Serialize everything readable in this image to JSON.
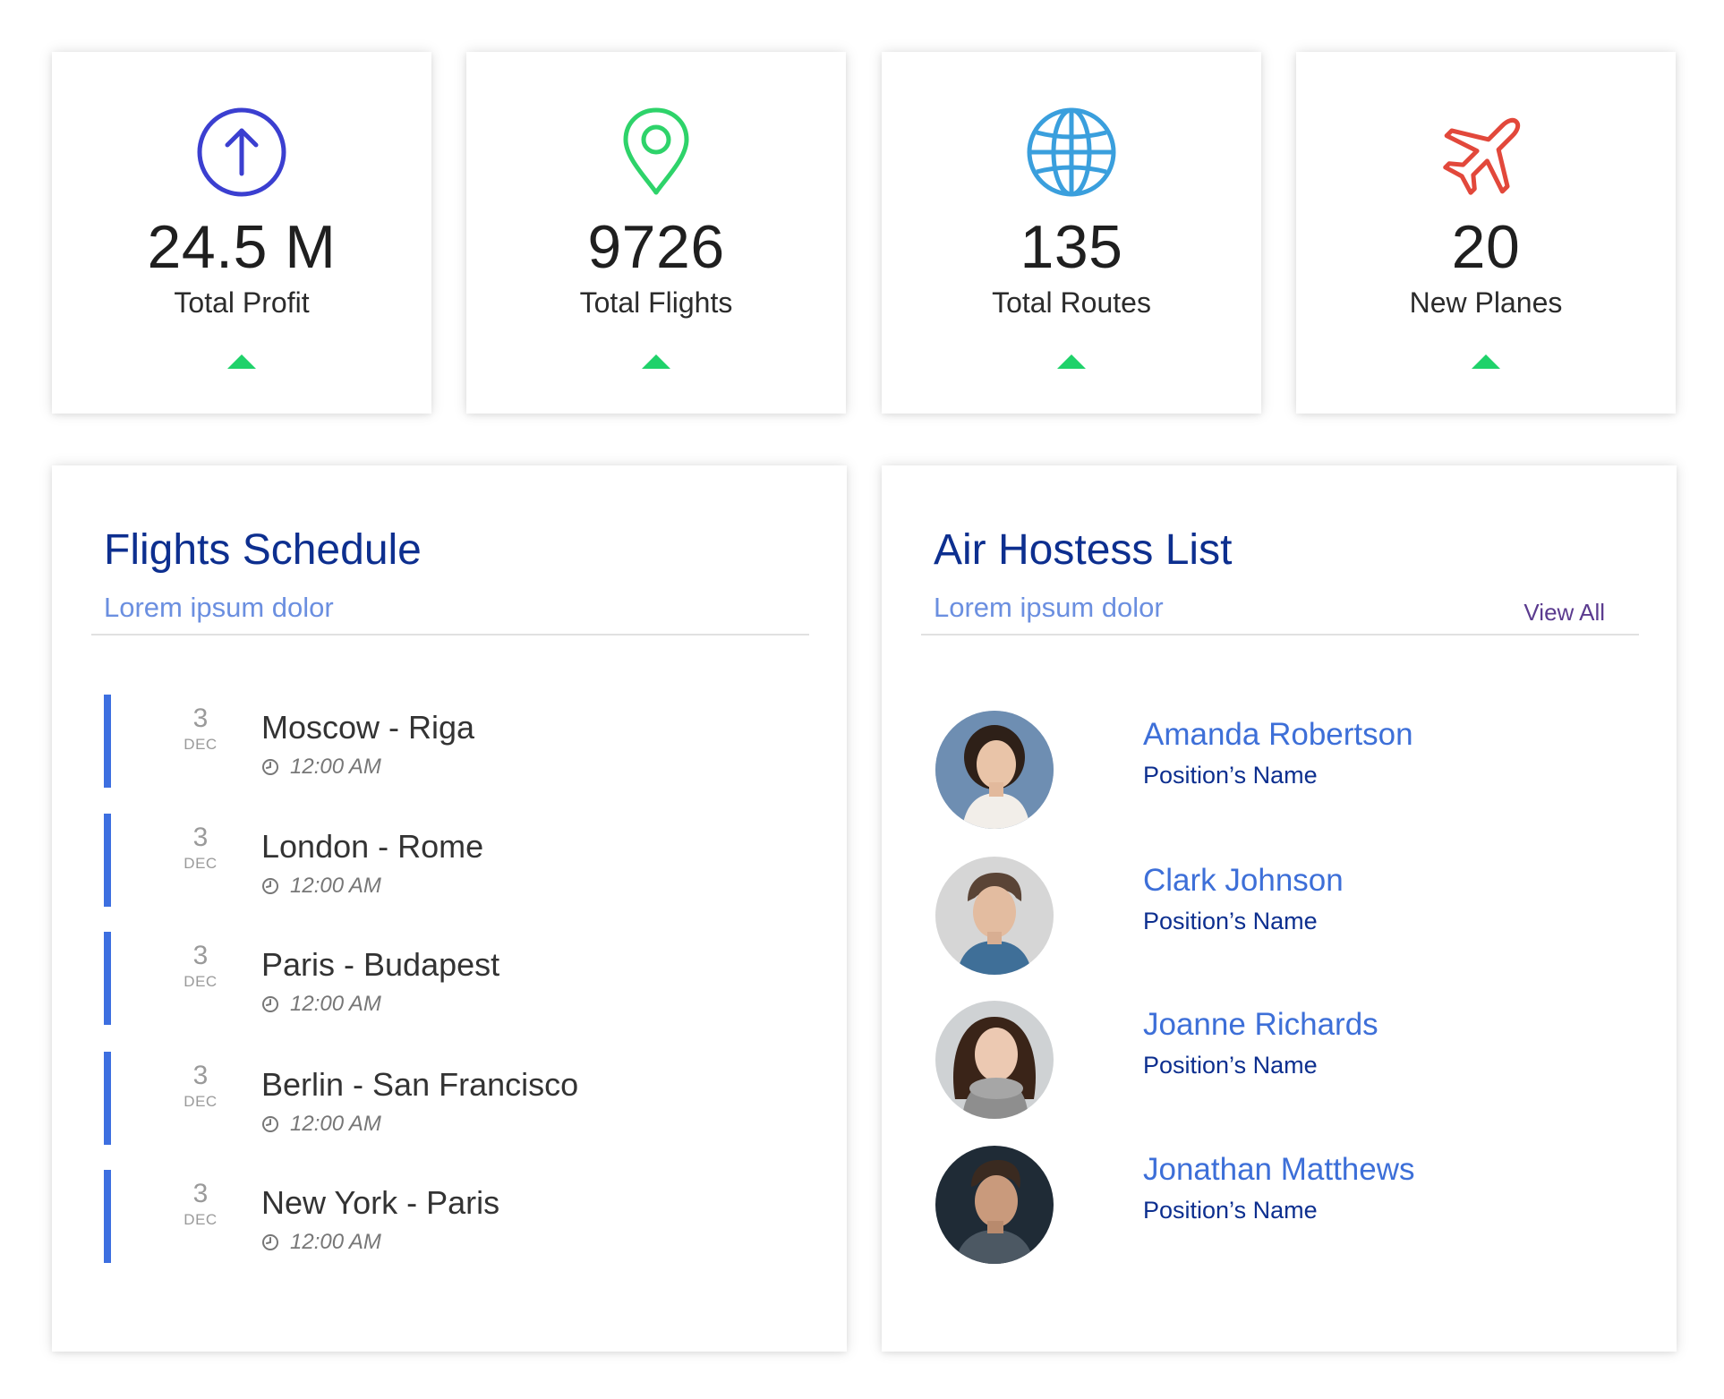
{
  "stats": [
    {
      "value": "24.5 M",
      "label": "Total Profit",
      "icon": "arrow-up-circle-icon",
      "color": "#3b3fd0",
      "trend": "up"
    },
    {
      "value": "9726",
      "label": "Total Flights",
      "icon": "map-pin-icon",
      "color": "#2ed36a",
      "trend": "up"
    },
    {
      "value": "135",
      "label": "Total Routes",
      "icon": "globe-icon",
      "color": "#3a9fdd",
      "trend": "up"
    },
    {
      "value": "20",
      "label": "New Planes",
      "icon": "airplane-icon",
      "color": "#e2483b",
      "trend": "up"
    }
  ],
  "schedule": {
    "title": "Flights Schedule",
    "subtitle": "Lorem ipsum dolor",
    "flights": [
      {
        "day": "3",
        "month": "DEC",
        "route": "Moscow - Riga",
        "time": "12:00 AM"
      },
      {
        "day": "3",
        "month": "DEC",
        "route": "London - Rome",
        "time": "12:00 AM"
      },
      {
        "day": "3",
        "month": "DEC",
        "route": "Paris - Budapest",
        "time": "12:00 AM"
      },
      {
        "day": "3",
        "month": "DEC",
        "route": "Berlin - San Francisco",
        "time": "12:00 AM"
      },
      {
        "day": "3",
        "month": "DEC",
        "route": "New York - Paris",
        "time": "12:00 AM"
      }
    ]
  },
  "hostesses": {
    "title": "Air Hostess List",
    "subtitle": "Lorem ipsum dolor",
    "view_all": "View All",
    "people": [
      {
        "name": "Amanda Robertson",
        "role": "Position’s Name"
      },
      {
        "name": "Clark Johnson",
        "role": "Position’s Name"
      },
      {
        "name": "Joanne Richards",
        "role": "Position’s Name"
      },
      {
        "name": "Jonathan Matthews",
        "role": "Position’s Name"
      }
    ]
  },
  "colors": {
    "accent_bar": "#3d6fe0",
    "trend_up": "#1fd26a",
    "panel_title": "#0d2f8f",
    "panel_subtitle": "#6b8fe0"
  }
}
